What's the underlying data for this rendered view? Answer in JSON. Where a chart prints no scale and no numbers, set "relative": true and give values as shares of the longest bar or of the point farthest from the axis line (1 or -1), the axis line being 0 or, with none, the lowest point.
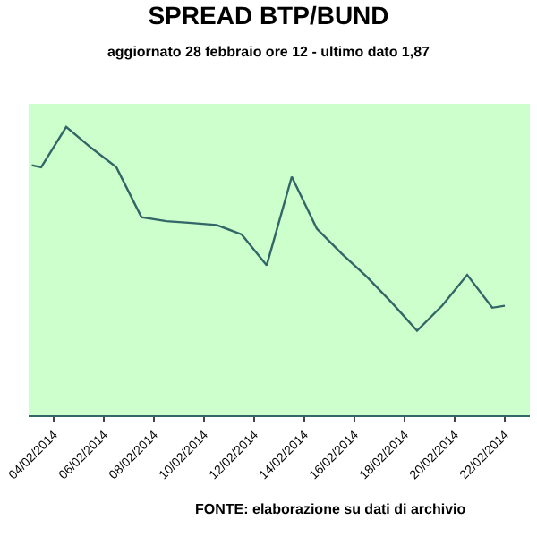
{
  "chart_data": {
    "type": "line",
    "title": "SPREAD BTP/BUND",
    "subtitle": "aggiornato 28 febbraio ore 12 - ultimo dato 1,87",
    "relative": true,
    "x": [
      "2014-02-03T03:00",
      "2014-02-03T12:00",
      "2014-02-04T12:00",
      "2014-02-05T12:00",
      "2014-02-06T12:00",
      "2014-02-07T12:00",
      "2014-02-08T12:00",
      "2014-02-09T12:00",
      "2014-02-10T12:00",
      "2014-02-11T12:00",
      "2014-02-12T12:00",
      "2014-02-13T12:00",
      "2014-02-14T12:00",
      "2014-02-15T12:00",
      "2014-02-16T12:00",
      "2014-02-17T12:00",
      "2014-02-18T12:00",
      "2014-02-19T12:00",
      "2014-02-20T12:00",
      "2014-02-21T12:00",
      "2014-02-22T00:00"
    ],
    "series": [
      {
        "color": "#336666",
        "values": [
          0.867,
          0.86,
          1.0,
          0.927,
          0.86,
          0.687,
          0.673,
          0.667,
          0.66,
          0.627,
          0.52,
          0.827,
          0.647,
          0.56,
          0.48,
          0.39,
          0.293,
          0.38,
          0.487,
          0.373,
          0.38
        ]
      }
    ],
    "xlim": [
      "2014-02-03T00:00",
      "2014-02-23T00:00"
    ],
    "xticks": [
      {
        "value": "2014-02-04",
        "label": "04/02/2014"
      },
      {
        "value": "2014-02-06",
        "label": "06/02/2014"
      },
      {
        "value": "2014-02-08",
        "label": "08/02/2014"
      },
      {
        "value": "2014-02-10",
        "label": "10/02/2014"
      },
      {
        "value": "2014-02-12",
        "label": "12/02/2014"
      },
      {
        "value": "2014-02-14",
        "label": "14/02/2014"
      },
      {
        "value": "2014-02-16",
        "label": "16/02/2014"
      },
      {
        "value": "2014-02-18",
        "label": "18/02/2014"
      },
      {
        "value": "2014-02-20",
        "label": "20/02/2014"
      },
      {
        "value": "2014-02-22",
        "label": "22/02/2014"
      }
    ],
    "annotations": [
      "FONTE: elaborazione su dati di archivio"
    ],
    "marker": "none",
    "line_style": "solid",
    "grid": false
  }
}
